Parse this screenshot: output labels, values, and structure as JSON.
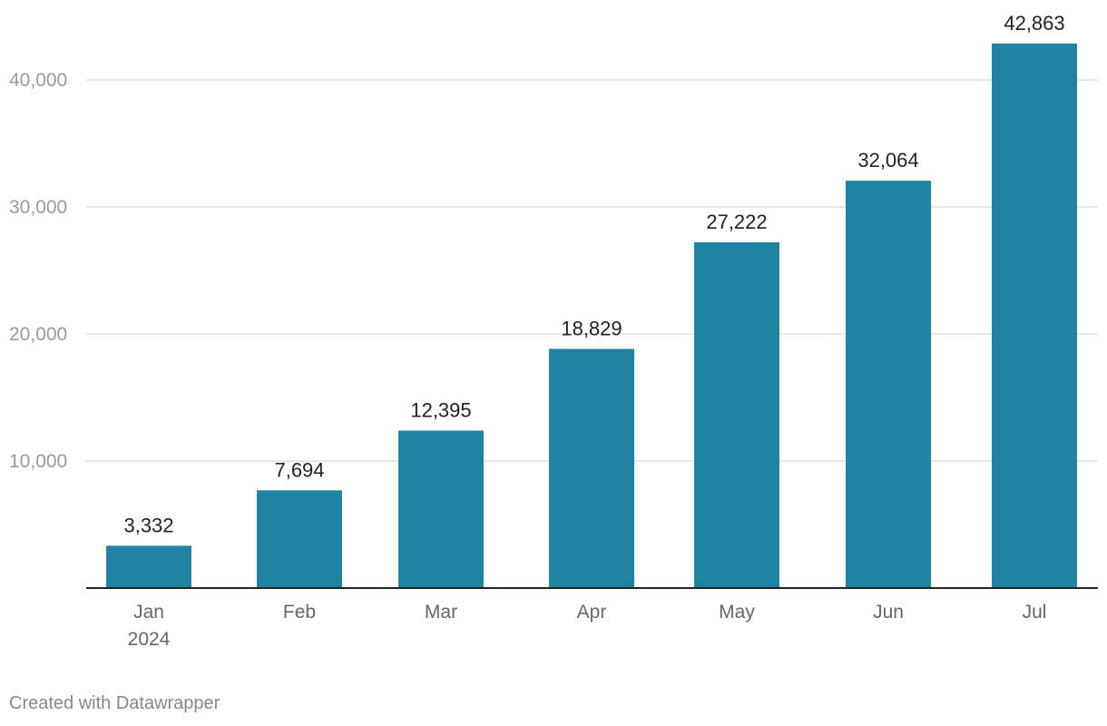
{
  "chart_data": {
    "type": "bar",
    "categories": [
      "Jan",
      "Feb",
      "Mar",
      "Apr",
      "May",
      "Jun",
      "Jul"
    ],
    "category_sublabels": [
      "2024",
      "",
      "",
      "",
      "",
      "",
      ""
    ],
    "values": [
      3332,
      7694,
      12395,
      18829,
      27222,
      32064,
      42863
    ],
    "value_labels": [
      "3,332",
      "7,694",
      "12,395",
      "18,829",
      "27,222",
      "32,064",
      "42,863"
    ],
    "y_ticks": [
      10000,
      20000,
      30000,
      40000
    ],
    "y_tick_labels": [
      "10,000",
      "20,000",
      "30,000",
      "40,000"
    ],
    "ylim": [
      0,
      42863
    ],
    "grid": true,
    "title": "",
    "xlabel": "",
    "ylabel": "",
    "colors": {
      "bar": "#1f83a1",
      "grid": "#e0e0e0",
      "axis": "#222222",
      "tick_text": "#9a9a9a",
      "category_text": "#666666",
      "value_text": "#222222"
    }
  },
  "footer": {
    "credit": "Created with Datawrapper"
  }
}
